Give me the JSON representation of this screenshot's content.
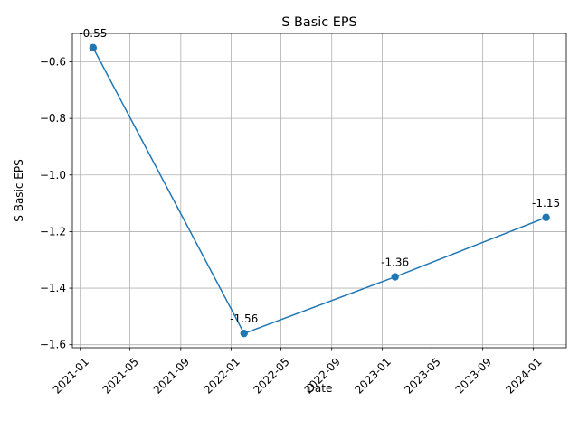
{
  "chart_data": {
    "type": "line",
    "title": "S Basic EPS",
    "xlabel": "Date",
    "ylabel": "S Basic EPS",
    "x": [
      "2021-02-01",
      "2022-02-01",
      "2023-02-01",
      "2024-02-01"
    ],
    "series": [
      {
        "values": [
          -0.55,
          -1.56,
          -1.36,
          -1.15
        ],
        "color": "#1f77b4",
        "marker": "circle"
      }
    ],
    "data_labels": [
      "-0.55",
      "-1.56",
      "-1.36",
      "-1.15"
    ],
    "xlim": [
      "2020-12-13",
      "2024-03-21"
    ],
    "ylim": [
      -1.6105,
      -0.4995
    ],
    "x_ticks": [
      {
        "date": "2021-01-01",
        "label": "2021-01"
      },
      {
        "date": "2021-05-01",
        "label": "2021-05"
      },
      {
        "date": "2021-09-01",
        "label": "2021-09"
      },
      {
        "date": "2022-01-01",
        "label": "2022-01"
      },
      {
        "date": "2022-05-01",
        "label": "2022-05"
      },
      {
        "date": "2022-09-01",
        "label": "2022-09"
      },
      {
        "date": "2023-01-01",
        "label": "2023-01"
      },
      {
        "date": "2023-05-01",
        "label": "2023-05"
      },
      {
        "date": "2023-09-01",
        "label": "2023-09"
      },
      {
        "date": "2024-01-01",
        "label": "2024-01"
      }
    ],
    "y_ticks": [
      {
        "value": -0.6,
        "label": "−0.6"
      },
      {
        "value": -0.8,
        "label": "−0.8"
      },
      {
        "value": -1.0,
        "label": "−1.0"
      },
      {
        "value": -1.2,
        "label": "−1.2"
      },
      {
        "value": -1.4,
        "label": "−1.4"
      },
      {
        "value": -1.6,
        "label": "−1.6"
      }
    ],
    "grid": true,
    "x_tick_rotation_deg": 45
  }
}
